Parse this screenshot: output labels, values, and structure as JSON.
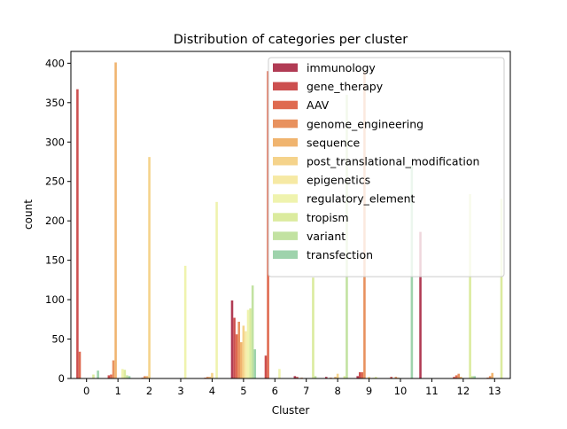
{
  "chart_data": {
    "type": "bar",
    "title": "Distribution of categories per cluster",
    "xlabel": "Cluster",
    "ylabel": "count",
    "ylim": [
      0,
      415
    ],
    "yticks": [
      0,
      50,
      100,
      150,
      200,
      250,
      300,
      350,
      400
    ],
    "categories": [
      "0",
      "1",
      "2",
      "3",
      "4",
      "5",
      "6",
      "7",
      "8",
      "9",
      "10",
      "11",
      "12",
      "13"
    ],
    "legend_position": "upper right",
    "grid": false,
    "series": [
      {
        "name": "immunology",
        "color": "#b13b54",
        "values": [
          0,
          0,
          0,
          0,
          0,
          99,
          0,
          3,
          2,
          3,
          0,
          186,
          0,
          0
        ]
      },
      {
        "name": "gene_therapy",
        "color": "#cc4f4f",
        "values": [
          367,
          4,
          0,
          0,
          0,
          77,
          29,
          2,
          0,
          8,
          2,
          0,
          2,
          0
        ]
      },
      {
        "name": "AAV",
        "color": "#df6a50",
        "values": [
          34,
          5,
          1,
          0,
          1,
          56,
          390,
          0,
          1,
          8,
          0,
          0,
          4,
          1
        ]
      },
      {
        "name": "genome_engineering",
        "color": "#e8915e",
        "values": [
          0,
          23,
          3,
          0,
          2,
          72,
          0,
          1,
          0,
          390,
          2,
          0,
          6,
          3
        ]
      },
      {
        "name": "sequence",
        "color": "#f0b46f",
        "values": [
          0,
          401,
          3,
          0,
          2,
          46,
          0,
          0,
          2,
          0,
          1,
          0,
          2,
          7
        ]
      },
      {
        "name": "post_translational_modification",
        "color": "#f5d38b",
        "values": [
          0,
          0,
          281,
          0,
          7,
          67,
          0,
          0,
          6,
          2,
          0,
          0,
          0,
          0
        ]
      },
      {
        "name": "epigenetics",
        "color": "#f6e9a4",
        "values": [
          0,
          0,
          0,
          0,
          0,
          60,
          0,
          0,
          0,
          0,
          0,
          0,
          0,
          0
        ]
      },
      {
        "name": "regulatory_element",
        "color": "#eff3ae",
        "values": [
          0,
          12,
          0,
          143,
          224,
          87,
          12,
          0,
          0,
          1,
          0,
          0,
          0,
          0
        ]
      },
      {
        "name": "tropism",
        "color": "#dbeb9e",
        "values": [
          5,
          11,
          0,
          0,
          0,
          89,
          0,
          128,
          3,
          2,
          0,
          0,
          234,
          228
        ]
      },
      {
        "name": "variant",
        "color": "#c2e2a1",
        "values": [
          0,
          4,
          0,
          0,
          0,
          118,
          0,
          3,
          360,
          0,
          0,
          0,
          3,
          0
        ]
      },
      {
        "name": "transfection",
        "color": "#9ed3ac",
        "values": [
          10,
          3,
          0,
          0,
          0,
          37,
          0,
          0,
          0,
          0,
          270,
          0,
          3,
          0
        ]
      }
    ]
  }
}
